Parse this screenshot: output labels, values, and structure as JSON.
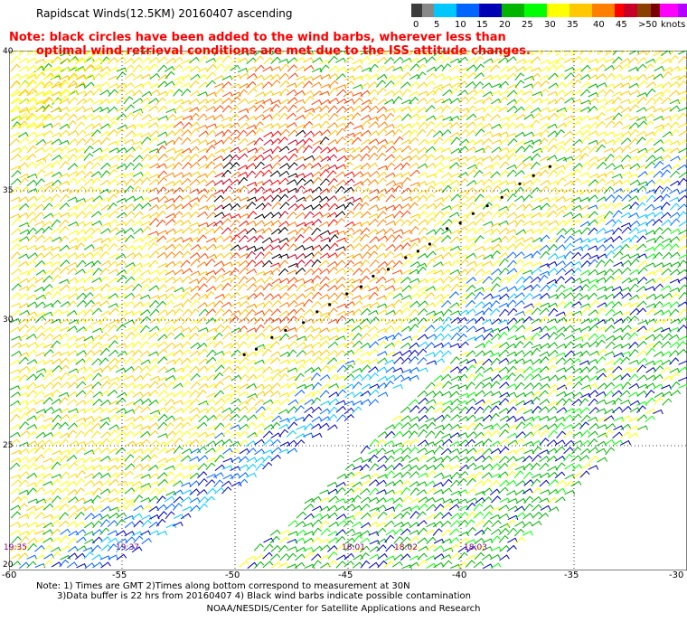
{
  "title": "Rapidscat Winds(12.5KM) 20160407 ascending",
  "note_red": {
    "line1": "Note: black circles have been added to the wind barbs, wherever less than",
    "line2": "optimal wind retrieval conditions are met due to the ISS attitude changes."
  },
  "legend": {
    "unit": "knots",
    "labels": [
      "0",
      "5",
      "10",
      "15",
      "20",
      "25",
      "30",
      "35",
      "40",
      "45",
      ">50"
    ],
    "colors": [
      "#3c3c3c",
      "#787878",
      "#a0a0a0",
      "#00c8ff",
      "#0080ff",
      "#0000c8",
      "#00b400",
      "#00ff00",
      "#ffff00",
      "#ffc800",
      "#ff8000",
      "#ff4000",
      "#ff0000",
      "#c80040",
      "#800000",
      "#ff00ff",
      "#8000c8"
    ]
  },
  "axes": {
    "lat_labels": [
      "40",
      "35",
      "30",
      "25",
      "20"
    ],
    "lon_labels": [
      "-60",
      "-55",
      "-50",
      "-45",
      "-40",
      "-35",
      "-30"
    ]
  },
  "times": [
    "19:35",
    "19:37",
    "18:01",
    "18:02",
    "18:03"
  ],
  "footer": {
    "line1": "Note: 1) Times are GMT 2)Times along bottom correspond to measurement at 30N",
    "line2": "3)Data buffer is 22 hrs from 20160407 4) Black wind barbs indicate possible contamination",
    "line3": "NOAA/NESDIS/Center for Satellite Applications and Research"
  }
}
